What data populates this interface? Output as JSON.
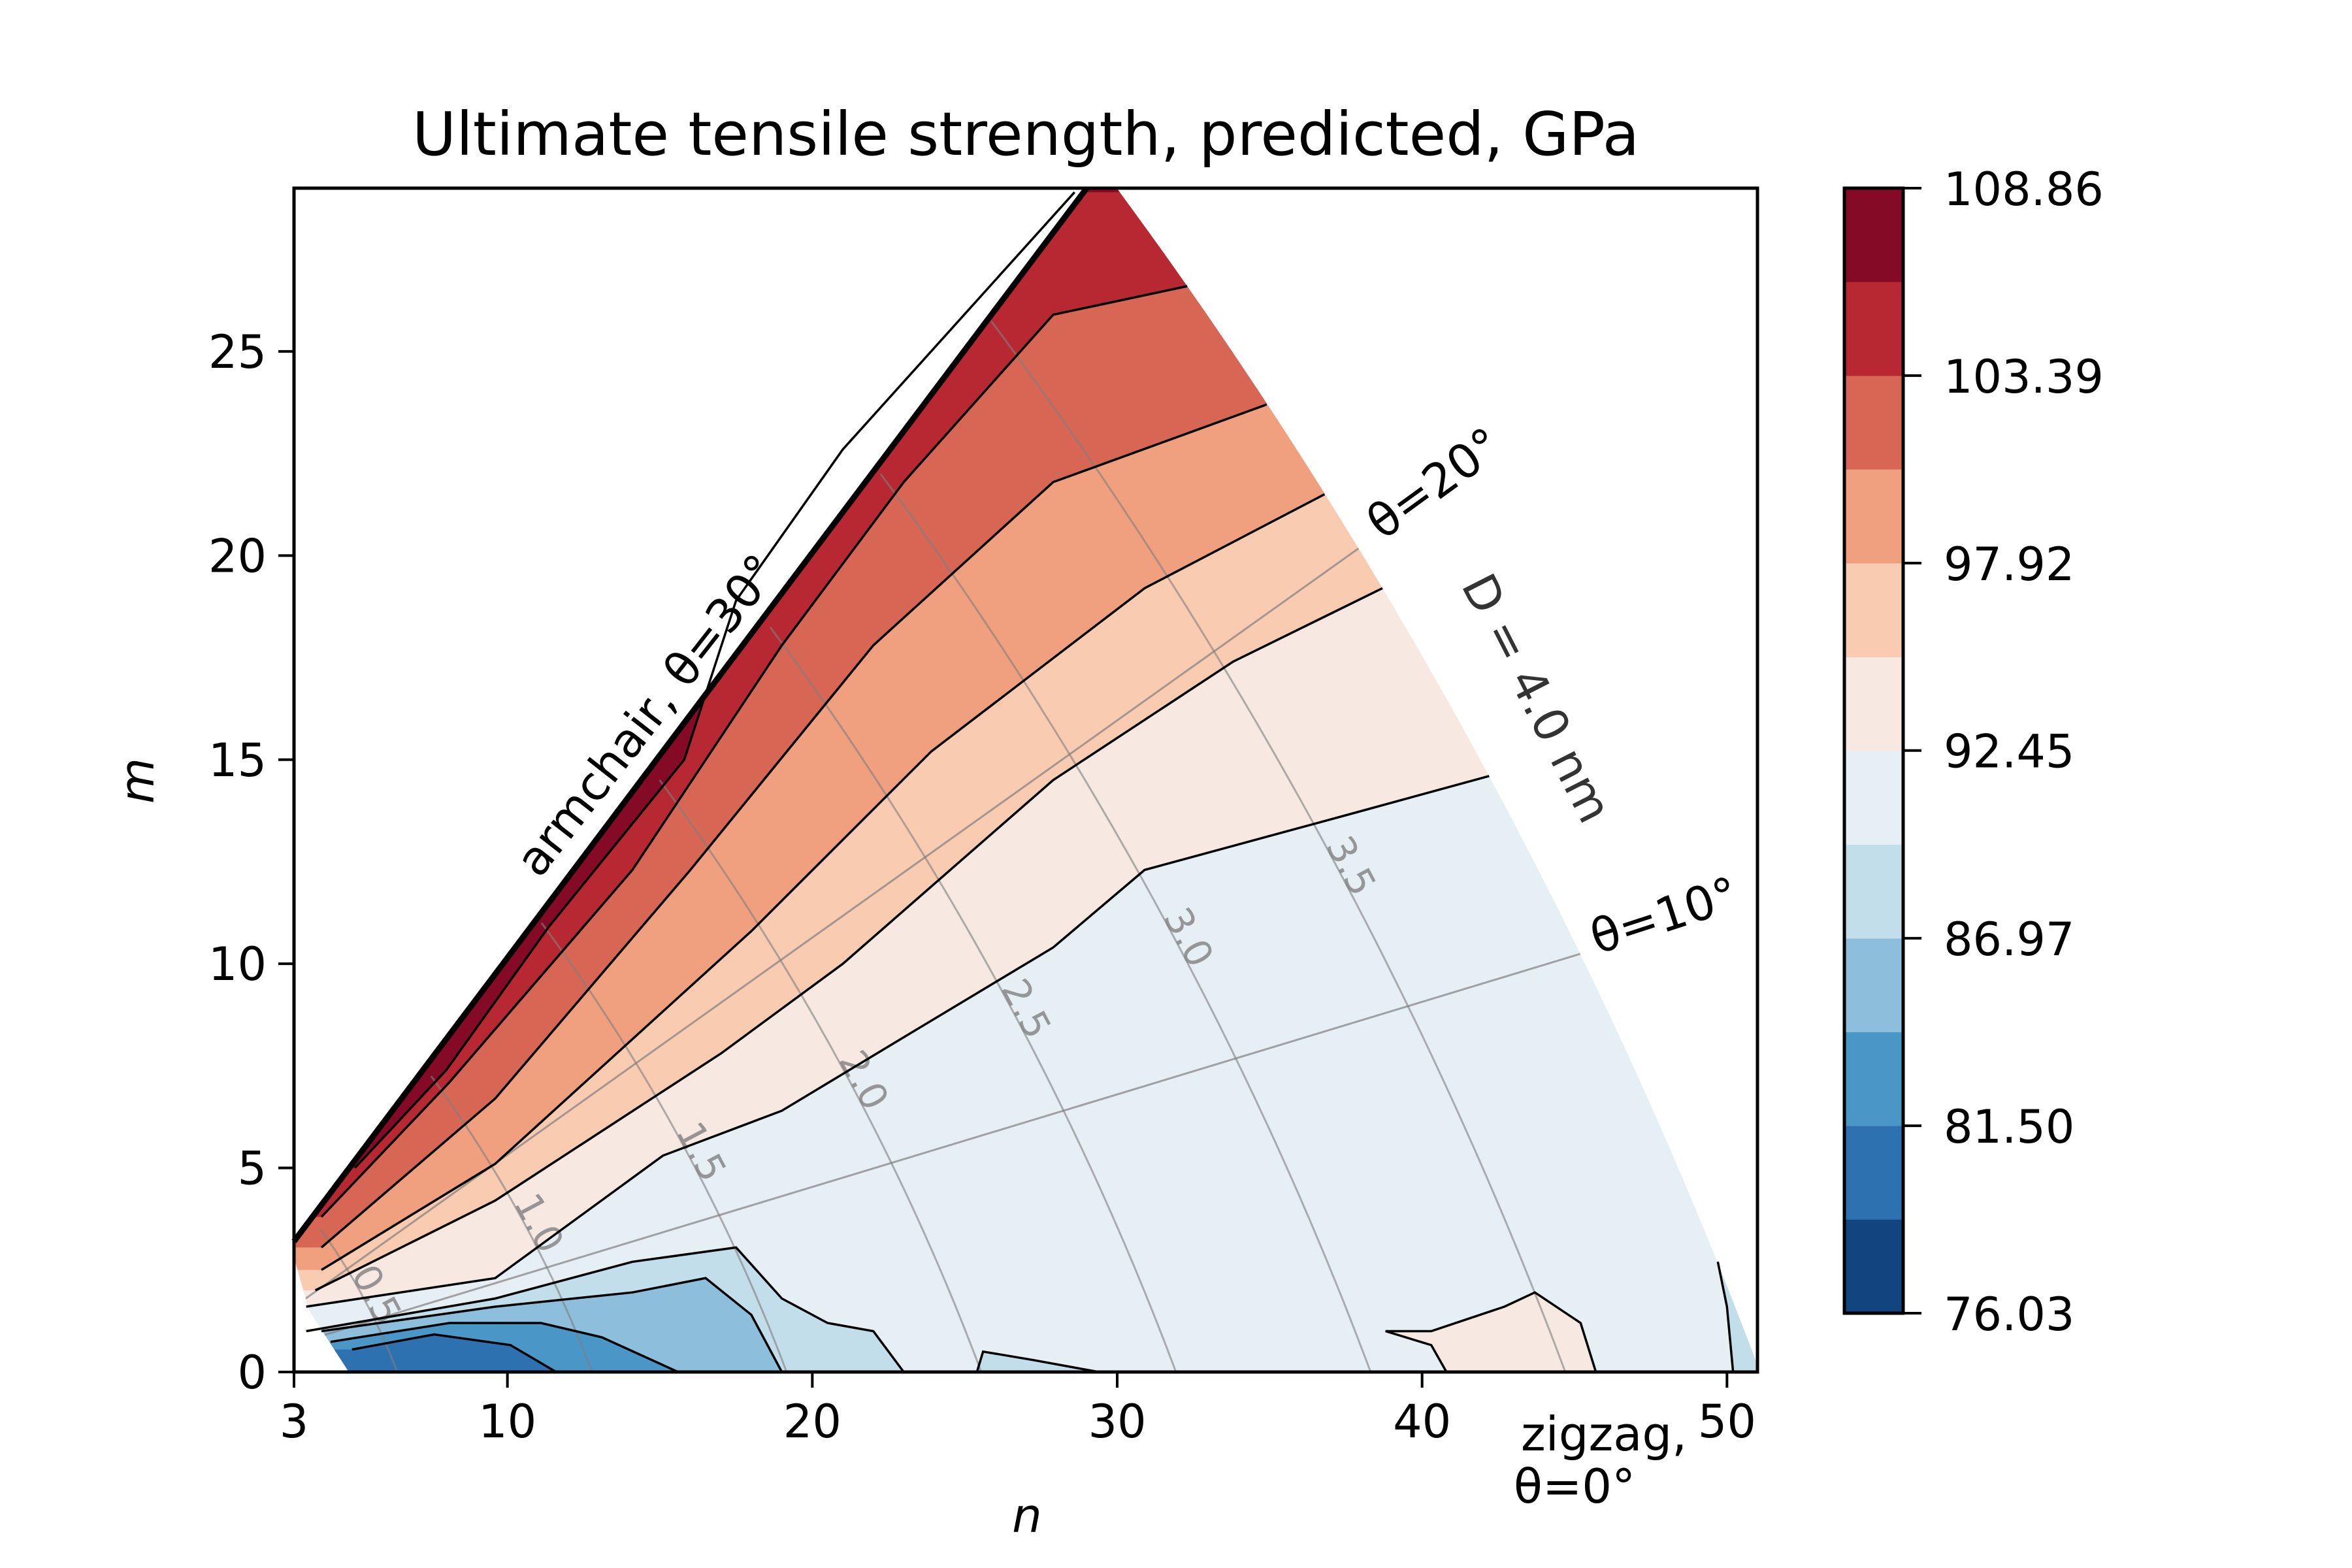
{
  "chart_data": {
    "type": "contour",
    "title": "Ultimate tensile strength, predicted, GPa",
    "xlabel": "n",
    "ylabel": "m",
    "xlim": [
      3,
      51
    ],
    "ylim": [
      0,
      29
    ],
    "xticks": [
      3,
      10,
      20,
      30,
      40,
      50
    ],
    "yticks": [
      0,
      5,
      10,
      15,
      20,
      25
    ],
    "colorbar": {
      "levels": [
        76.03,
        78.77,
        81.5,
        84.24,
        86.97,
        89.71,
        92.45,
        95.18,
        97.92,
        100.66,
        103.39,
        106.13,
        108.86
      ],
      "colors": [
        "#124580",
        "#2d71b0",
        "#4a97c7",
        "#8dbfdc",
        "#c3deeb",
        "#e6eff4",
        "#f7e9e2",
        "#f9cbb1",
        "#f0a07f",
        "#d86655",
        "#b82833",
        "#850a25"
      ],
      "tick_values": [
        76.03,
        81.5,
        86.97,
        92.45,
        97.92,
        103.39,
        108.86
      ],
      "tick_labels": [
        "76.03",
        "81.50",
        "86.97",
        "92.45",
        "97.92",
        "103.39",
        "108.86"
      ]
    },
    "domain_boundary": {
      "armchair_start": [
        3,
        3.2
      ],
      "armchair_end": [
        29,
        29
      ],
      "max_diameter_nm": 4.0,
      "lower_left": [
        [
          3,
          2.8
        ],
        [
          3.5,
          1.5
        ],
        [
          4.8,
          0
        ]
      ]
    },
    "contours": [
      {
        "level": 106.13,
        "points": [
          [
            5.0,
            5.0
          ],
          [
            8,
            7.4
          ],
          [
            11.35,
            10.9
          ],
          [
            15.8,
            15.0
          ],
          [
            17.5,
            18.9
          ],
          [
            21.0,
            22.6
          ],
          [
            28.6,
            28.9
          ]
        ]
      },
      {
        "level": 103.39,
        "points": [
          [
            3.9,
            3.8
          ],
          [
            8.1,
            7.1
          ],
          [
            14.1,
            12.3
          ],
          [
            19.0,
            17.8
          ],
          [
            23.0,
            21.8
          ],
          [
            27.9,
            25.9
          ],
          [
            32.3,
            26.6
          ]
        ]
      },
      {
        "level": 100.66,
        "points": [
          [
            3.9,
            3.05
          ],
          [
            9.6,
            6.7
          ],
          [
            16.0,
            12.3
          ],
          [
            22.0,
            17.8
          ],
          [
            27.9,
            21.8
          ],
          [
            34.9,
            23.7
          ]
        ]
      },
      {
        "level": 97.92,
        "points": [
          [
            3.9,
            2.5
          ],
          [
            9.6,
            5.1
          ],
          [
            18.0,
            10.8
          ],
          [
            23.9,
            15.2
          ],
          [
            30.9,
            19.2
          ],
          [
            36.8,
            21.5
          ]
        ]
      },
      {
        "level": 95.18,
        "points": [
          [
            3.7,
            2.0
          ],
          [
            9.6,
            4.2
          ],
          [
            17.0,
            7.8
          ],
          [
            21.0,
            10.0
          ],
          [
            27.9,
            14.5
          ],
          [
            33.8,
            17.4
          ],
          [
            38.7,
            19.2
          ]
        ]
      },
      {
        "level": 92.45,
        "points": [
          [
            3.4,
            1.6
          ],
          [
            9.6,
            2.3
          ],
          [
            15.1,
            5.3
          ],
          [
            19.0,
            6.4
          ],
          [
            23.0,
            8.2
          ],
          [
            27.9,
            10.4
          ],
          [
            30.9,
            12.3
          ],
          [
            37.8,
            13.7
          ],
          [
            42.2,
            14.6
          ]
        ]
      },
      {
        "level": 89.71,
        "points": [
          [
            3.4,
            1.0
          ],
          [
            9.6,
            1.8
          ],
          [
            14.1,
            2.7
          ],
          [
            17.5,
            3.05
          ],
          [
            19.0,
            1.8
          ],
          [
            20.5,
            1.2
          ],
          [
            22.0,
            1.0
          ],
          [
            23.0,
            0
          ]
        ]
      },
      {
        "level": 89.71,
        "points": [
          [
            25.4,
            0
          ],
          [
            25.6,
            0.5
          ],
          [
            27.2,
            0.3
          ],
          [
            29.4,
            0
          ]
        ]
      },
      {
        "level": 89.71,
        "points": [
          [
            49.7,
            2.7
          ],
          [
            50.0,
            1.6
          ],
          [
            50.2,
            0
          ]
        ]
      },
      {
        "level": 92.45,
        "points": [
          [
            40.8,
            0
          ],
          [
            40.3,
            0.66
          ],
          [
            38.8,
            1.0
          ],
          [
            40.3,
            1.0
          ],
          [
            42.7,
            1.6
          ],
          [
            43.7,
            1.95
          ],
          [
            45.2,
            1.2
          ],
          [
            45.7,
            0
          ]
        ]
      },
      {
        "level": 86.97,
        "points": [
          [
            3.9,
            1.0
          ],
          [
            9.6,
            1.6
          ],
          [
            14.1,
            1.95
          ],
          [
            16.5,
            2.3
          ],
          [
            18.0,
            1.4
          ],
          [
            19.0,
            0
          ]
        ]
      },
      {
        "level": 84.24,
        "points": [
          [
            4.2,
            0.74
          ],
          [
            8.1,
            1.2
          ],
          [
            11.1,
            1.2
          ],
          [
            13.1,
            0.85
          ],
          [
            15.6,
            0
          ]
        ]
      },
      {
        "level": 81.5,
        "points": [
          [
            4.9,
            0.55
          ],
          [
            7.6,
            0.92
          ],
          [
            10.1,
            0.66
          ],
          [
            11.6,
            0
          ]
        ]
      }
    ],
    "diameter_contours_nm": [
      0.5,
      1.0,
      1.5,
      2.0,
      2.5,
      3.0,
      3.5
    ],
    "diameter_labels": [
      "0.5",
      "1.0",
      "1.5",
      "2.0",
      "2.5",
      "3.0",
      "3.5"
    ],
    "angle_lines_deg": [
      10,
      20
    ]
  },
  "annotations": {
    "armchair": "armchair, θ=30°",
    "theta20": "θ=20°",
    "theta10": "θ=10°",
    "diameter": "D = 4.0 nm",
    "zigzag_line1": "zigzag,",
    "zigzag_line2": "θ=0°"
  }
}
